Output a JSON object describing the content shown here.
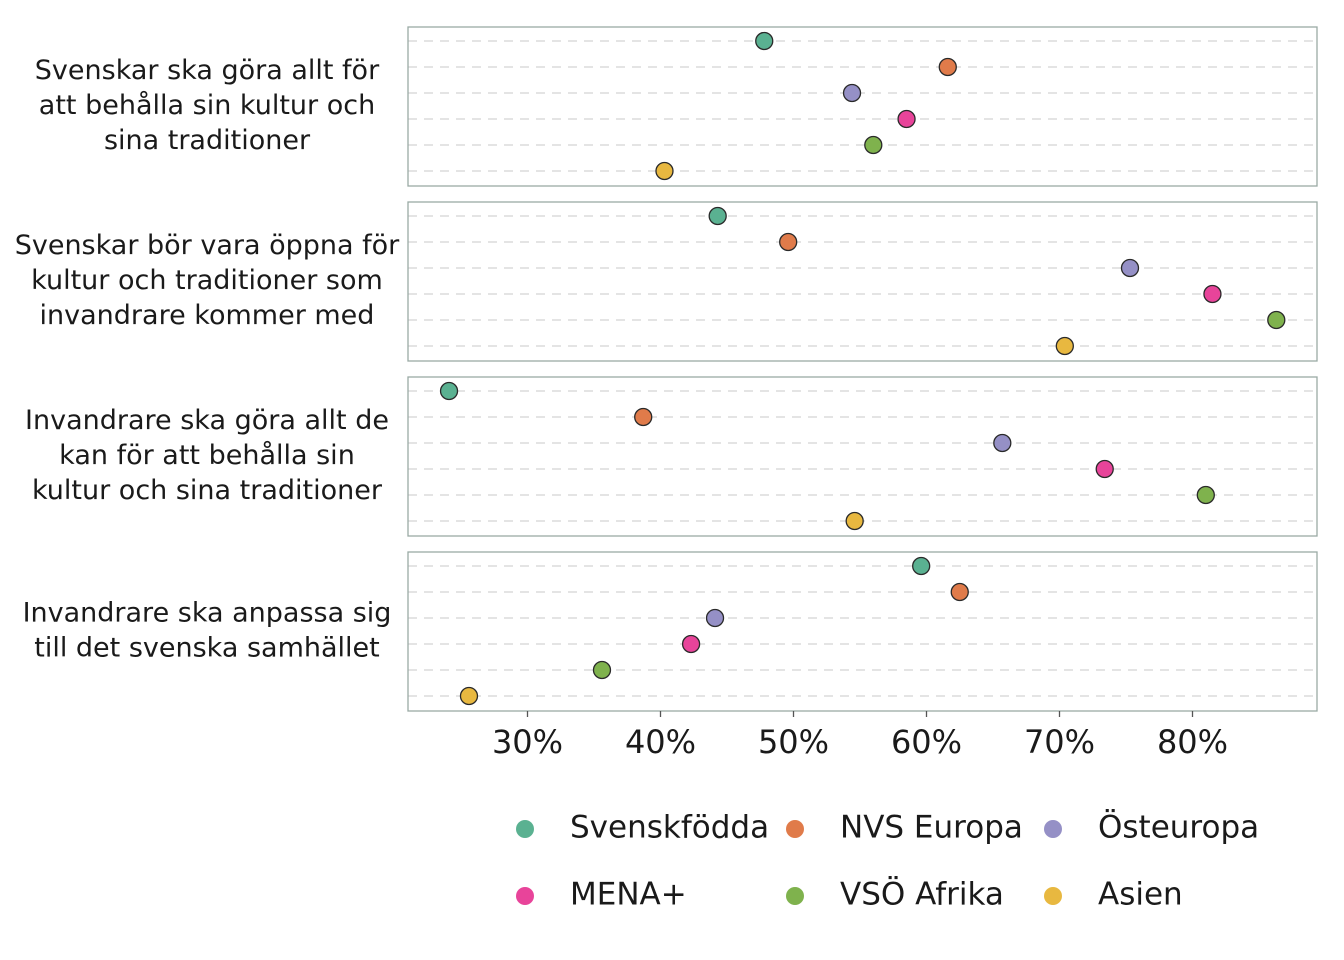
{
  "chart_data": {
    "type": "scatter",
    "orientation": "dot-plot with facet panels",
    "xlim": [
      21,
      89
    ],
    "x_ticks": [
      30,
      40,
      50,
      60,
      70,
      80
    ],
    "x_tick_labels": [
      "30%",
      "40%",
      "50%",
      "60%",
      "70%",
      "80%"
    ],
    "grid": "dashed horizontal lines per group",
    "legend_position": "bottom",
    "groups": [
      {
        "name": "Svenskfödda",
        "color": "#5ab191"
      },
      {
        "name": "NVS Europa",
        "color": "#e07b4a"
      },
      {
        "name": "Östeuropa",
        "color": "#9590c6"
      },
      {
        "name": "MENA+",
        "color": "#e8449a"
      },
      {
        "name": "VSÖ Afrika",
        "color": "#7fb24d"
      },
      {
        "name": "Asien",
        "color": "#e8b840"
      }
    ],
    "panels": [
      {
        "label_lines": [
          "Svenskar ska göra allt för",
          "att behålla sin kultur och",
          "sina traditioner"
        ],
        "values": [
          47.8,
          61.6,
          54.4,
          58.5,
          56.0,
          40.3
        ]
      },
      {
        "label_lines": [
          "Svenskar bör vara öppna för",
          "kultur och traditioner som",
          "invandrare kommer med"
        ],
        "values": [
          44.3,
          49.6,
          75.3,
          81.5,
          86.3,
          70.4
        ]
      },
      {
        "label_lines": [
          "Invandrare ska göra allt de",
          "kan för att behålla sin",
          "kultur och sina traditioner"
        ],
        "values": [
          24.1,
          38.7,
          65.7,
          73.4,
          81.0,
          54.6
        ]
      },
      {
        "label_lines": [
          "Invandrare ska anpassa sig",
          "till det svenska samhället"
        ],
        "values": [
          59.6,
          62.5,
          44.1,
          42.3,
          35.6,
          25.6
        ]
      }
    ]
  }
}
